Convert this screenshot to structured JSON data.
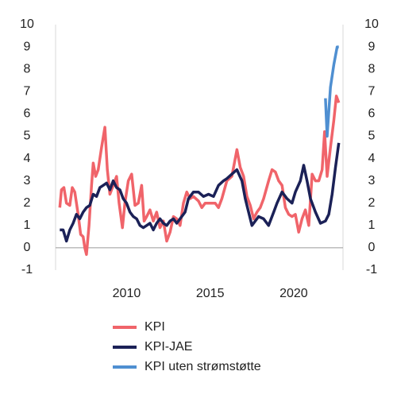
{
  "chart_data": {
    "type": "line",
    "xlim": [
      2005.75,
      2022.95
    ],
    "xticks": [
      2010,
      2015,
      2020
    ],
    "ylim": [
      -1,
      10
    ],
    "yticks": [
      -1,
      0,
      1,
      2,
      3,
      4,
      5,
      6,
      7,
      8,
      9,
      10
    ],
    "y2lim": [
      -1,
      10
    ],
    "y2ticks": [
      -1,
      0,
      1,
      2,
      3,
      4,
      5,
      6,
      7,
      8,
      9,
      10
    ],
    "series": [
      {
        "name": "KPI",
        "color": "#f0646a",
        "x": [
          2006.0,
          2006.1,
          2006.25,
          2006.4,
          2006.6,
          2006.75,
          2006.9,
          2007.1,
          2007.25,
          2007.4,
          2007.5,
          2007.6,
          2007.75,
          2007.9,
          2008.0,
          2008.15,
          2008.3,
          2008.5,
          2008.7,
          2008.85,
          2009.0,
          2009.2,
          2009.4,
          2009.55,
          2009.75,
          2009.9,
          2010.1,
          2010.3,
          2010.5,
          2010.7,
          2010.9,
          2011.05,
          2011.2,
          2011.4,
          2011.6,
          2011.8,
          2012.0,
          2012.2,
          2012.4,
          2012.6,
          2012.8,
          2013.0,
          2013.2,
          2013.4,
          2013.6,
          2013.8,
          2014.0,
          2014.3,
          2014.5,
          2014.7,
          2015.0,
          2015.3,
          2015.5,
          2015.7,
          2016.0,
          2016.3,
          2016.6,
          2016.8,
          2017.0,
          2017.2,
          2017.4,
          2017.6,
          2017.8,
          2018.0,
          2018.2,
          2018.5,
          2018.7,
          2018.9,
          2019.1,
          2019.3,
          2019.5,
          2019.7,
          2019.9,
          2020.1,
          2020.3,
          2020.5,
          2020.7,
          2020.9,
          2021.1,
          2021.3,
          2021.5,
          2021.7,
          2021.85,
          2022.0,
          2022.2,
          2022.4,
          2022.55,
          2022.7
        ],
        "values": [
          1.8,
          2.6,
          2.7,
          2.0,
          1.9,
          2.7,
          2.5,
          1.5,
          0.6,
          0.5,
          0.0,
          -0.3,
          1.0,
          2.8,
          3.8,
          3.2,
          3.5,
          4.5,
          5.4,
          3.5,
          2.4,
          2.8,
          3.2,
          2.0,
          0.9,
          2.0,
          3.0,
          3.3,
          1.9,
          2.0,
          2.8,
          1.2,
          1.4,
          1.7,
          1.2,
          1.6,
          0.9,
          1.2,
          0.3,
          0.7,
          1.4,
          1.3,
          1.0,
          2.0,
          2.5,
          2.2,
          2.3,
          2.1,
          1.8,
          2.0,
          2.0,
          2.0,
          1.8,
          2.2,
          3.0,
          3.2,
          4.4,
          3.6,
          3.2,
          2.3,
          1.9,
          1.3,
          1.6,
          1.8,
          2.2,
          3.0,
          3.5,
          3.4,
          3.0,
          2.8,
          1.8,
          1.5,
          1.4,
          1.5,
          0.7,
          1.3,
          1.7,
          1.0,
          3.3,
          3.0,
          3.0,
          3.5,
          5.2,
          3.2,
          4.5,
          5.7,
          6.8,
          6.5
        ]
      },
      {
        "name": "KPI-JAE",
        "color": "#1b2157",
        "x": [
          2006.0,
          2006.2,
          2006.4,
          2006.6,
          2006.8,
          2007.0,
          2007.2,
          2007.4,
          2007.6,
          2007.8,
          2008.0,
          2008.2,
          2008.4,
          2008.6,
          2008.8,
          2009.0,
          2009.2,
          2009.4,
          2009.6,
          2009.8,
          2010.0,
          2010.2,
          2010.4,
          2010.6,
          2010.8,
          2011.0,
          2011.2,
          2011.4,
          2011.6,
          2011.8,
          2012.0,
          2012.2,
          2012.4,
          2012.6,
          2012.8,
          2013.0,
          2013.3,
          2013.5,
          2013.7,
          2014.0,
          2014.3,
          2014.6,
          2014.9,
          2015.2,
          2015.5,
          2015.8,
          2016.0,
          2016.3,
          2016.6,
          2016.9,
          2017.1,
          2017.3,
          2017.5,
          2017.7,
          2017.9,
          2018.2,
          2018.5,
          2018.8,
          2019.0,
          2019.3,
          2019.6,
          2019.9,
          2020.1,
          2020.4,
          2020.6,
          2020.8,
          2021.0,
          2021.3,
          2021.6,
          2021.9,
          2022.1,
          2022.3,
          2022.5,
          2022.7
        ],
        "values": [
          0.8,
          0.8,
          0.3,
          0.8,
          1.1,
          1.5,
          1.3,
          1.6,
          1.8,
          1.9,
          2.4,
          2.3,
          2.7,
          2.8,
          2.9,
          2.6,
          3.0,
          2.7,
          2.6,
          2.2,
          2.0,
          1.6,
          1.4,
          1.3,
          1.0,
          0.9,
          1.0,
          1.1,
          0.8,
          1.1,
          1.3,
          1.1,
          1.0,
          1.2,
          1.3,
          1.1,
          1.4,
          1.6,
          2.2,
          2.5,
          2.5,
          2.3,
          2.4,
          2.3,
          2.8,
          3.0,
          3.1,
          3.3,
          3.5,
          3.0,
          2.2,
          1.6,
          1.0,
          1.2,
          1.4,
          1.3,
          1.0,
          1.6,
          2.0,
          2.5,
          2.2,
          2.0,
          2.5,
          3.0,
          3.7,
          3.0,
          2.2,
          1.6,
          1.1,
          1.2,
          1.5,
          2.4,
          3.6,
          4.7
        ]
      },
      {
        "name": "KPI uten strømstøtte",
        "color": "#4f8fd1",
        "x": [
          2021.9,
          2022.0,
          2022.2,
          2022.4,
          2022.6,
          2022.7
        ],
        "values": [
          6.7,
          5.0,
          7.2,
          8.2,
          9.0,
          9.0
        ]
      }
    ]
  }
}
